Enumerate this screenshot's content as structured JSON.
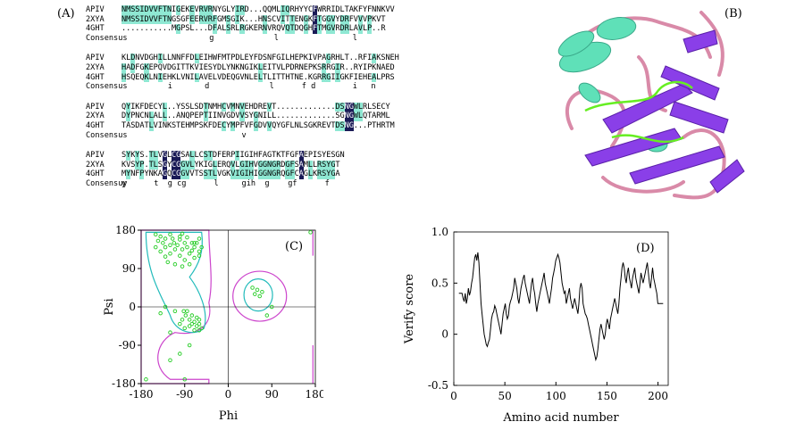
{
  "panels": {
    "a": "(A)",
    "b": "(B)",
    "c": "(C)",
    "d": "(D)"
  },
  "alignment": {
    "blocks": [
      {
        "rows": [
          {
            "name": "APIV",
            "seq": "NMSSIDVVFTNIGEKEVRVRNYGLYIRD...QQMLIQRHYYCFWRRIDLTAKFYFNNKVV"
          },
          {
            "name": "2XYA",
            "seq": "NMSSIDVVFTNGSGFEERVRFGMSGIK...HNSCVITTENGKFTGGVYDRFVVVPKVT"
          },
          {
            "name": "4GHT",
            "seq": "...........MGPSL...DFALSRLRGKERNVRQVQTDQGHFTMGVRDRLAVLP..R"
          }
        ],
        "consensus": "                   g             l                l          "
      },
      {
        "rows": [
          {
            "name": "APIV",
            "seq": "KLDNVDGHILLNNFFDLEIHWFMTPDLEYFDSNFGILHEPKIVPAGRHLT..RFIAKSNEH"
          },
          {
            "name": "2XYA",
            "seq": "HADFGKEPQVDGITTKVIESYDLYNKNGIKLEITVLPDRNEPKSRRGIR..RYIPKNAED"
          },
          {
            "name": "4GHT",
            "seq": "HSQEQKLNIEHKLVNILAVELVDEQGVNLELTLITTHTNE.KGRRGIIGKFIEHEALPRS"
          }
        ],
        "consensus": "          i       d             l      f d        i   n      "
      },
      {
        "rows": [
          {
            "name": "APIV",
            "seq": "QYIKFDECYL..YSSLSDTNMHCVMNVEHDREVT.............DSNGWLRLSECY"
          },
          {
            "name": "2XYA",
            "seq": "DYPNCNLALL..ANQPEPTIINVGDVVSYGNILL.............SGNGWLQTARML"
          },
          {
            "name": "4GHT",
            "seq": "TASDATLVINKSTEHMPSKFDECYMPFVFGDVVQYGFLNLSGKREVTDSNG...PTHRTM"
          }
        ],
        "consensus": "                          v                                  "
      },
      {
        "rows": [
          {
            "name": "APIV",
            "seq": "SYKYS.TLVGLCGSALLCSTDFERPIIGIHFAGTKTFGFAEPISYESGN"
          },
          {
            "name": "2XYA",
            "seq": "KVSYP.TLSGYCGGVLYKIGLERQVLGIHVGGNGRDGFSAMLLRSYGT"
          },
          {
            "name": "4GHT",
            "seq": "MYNFPYNKAGQCGGVVTSSTLVGKVIGIHIGGNGRQGFCAGLKRSYGA"
          }
        ],
        "consensus": "y      t  g cg      l     gih  g    gf      f     ",
        "consensus_label": "Consensuy"
      }
    ],
    "consensus_label": "Consensus"
  },
  "ramachandran": {
    "xlabel": "Phi",
    "ylabel": "Psi",
    "xticks": [
      "-180",
      "-90",
      "0",
      "90",
      "180"
    ],
    "yticks": [
      "180",
      "90",
      "0",
      "-90",
      "-180"
    ],
    "points_color": "#22cc22",
    "contour_outer_color": "#cc44cc",
    "contour_inner_color": "#22bbbb",
    "points": [
      [
        -140,
        165
      ],
      [
        -130,
        160
      ],
      [
        -120,
        170
      ],
      [
        -112,
        150
      ],
      [
        -100,
        158
      ],
      [
        -95,
        172
      ],
      [
        -85,
        163
      ],
      [
        -75,
        150
      ],
      [
        -70,
        140
      ],
      [
        -60,
        130
      ],
      [
        -150,
        140
      ],
      [
        -140,
        130
      ],
      [
        -130,
        118
      ],
      [
        -120,
        125
      ],
      [
        -110,
        135
      ],
      [
        -100,
        120
      ],
      [
        -90,
        110
      ],
      [
        -80,
        125
      ],
      [
        -70,
        115
      ],
      [
        -60,
        120
      ],
      [
        -55,
        140
      ],
      [
        -65,
        150
      ],
      [
        -135,
        150
      ],
      [
        -120,
        145
      ],
      [
        -105,
        145
      ],
      [
        -95,
        135
      ],
      [
        -85,
        140
      ],
      [
        -75,
        132
      ],
      [
        -150,
        170
      ],
      [
        -145,
        155
      ],
      [
        -125,
        105
      ],
      [
        -110,
        100
      ],
      [
        -95,
        95
      ],
      [
        -80,
        100
      ],
      [
        -70,
        150
      ],
      [
        -60,
        160
      ],
      [
        -115,
        160
      ],
      [
        -90,
        150
      ],
      [
        -130,
        140
      ],
      [
        -100,
        165
      ],
      [
        -92,
        -10
      ],
      [
        -88,
        -20
      ],
      [
        -80,
        -30
      ],
      [
        -75,
        -40
      ],
      [
        -70,
        -35
      ],
      [
        -65,
        -45
      ],
      [
        -60,
        -40
      ],
      [
        -55,
        -50
      ],
      [
        -70,
        -55
      ],
      [
        -80,
        -45
      ],
      [
        -95,
        -30
      ],
      [
        -100,
        -40
      ],
      [
        -85,
        -10
      ],
      [
        -75,
        -20
      ],
      [
        -65,
        -25
      ],
      [
        -60,
        -55
      ],
      [
        -90,
        -50
      ],
      [
        -120,
        -60
      ],
      [
        -110,
        -10
      ],
      [
        -60,
        -30
      ],
      [
        -130,
        0
      ],
      [
        -140,
        -15
      ],
      [
        -100,
        -110
      ],
      [
        -120,
        -125
      ],
      [
        -80,
        -90
      ],
      [
        60,
        40
      ],
      [
        55,
        30
      ],
      [
        65,
        25
      ],
      [
        70,
        35
      ],
      [
        50,
        45
      ],
      [
        80,
        -20
      ],
      [
        -170,
        -170
      ],
      [
        -90,
        -170
      ],
      [
        90,
        0
      ],
      [
        170,
        175
      ]
    ],
    "xlim": [
      -180,
      180
    ],
    "ylim": [
      -180,
      180
    ]
  },
  "verify": {
    "xlabel": "Amino acid number",
    "ylabel": "Verify score",
    "xticks": [
      "0",
      "50",
      "100",
      "150",
      "200"
    ],
    "yticks": [
      "1.0",
      "0.5",
      "0",
      "-0.5"
    ],
    "xlim": [
      0,
      210
    ],
    "ylim": [
      -0.5,
      1.0
    ],
    "y": [
      0.4,
      0.4,
      0.4,
      0.4,
      0.35,
      0.32,
      0.4,
      0.3,
      0.35,
      0.45,
      0.38,
      0.42,
      0.5,
      0.55,
      0.65,
      0.75,
      0.78,
      0.72,
      0.8,
      0.7,
      0.5,
      0.3,
      0.2,
      0.1,
      0.0,
      -0.05,
      -0.1,
      -0.12,
      -0.08,
      -0.05,
      0.05,
      0.15,
      0.2,
      0.22,
      0.28,
      0.25,
      0.2,
      0.15,
      0.1,
      0.05,
      0.0,
      0.1,
      0.2,
      0.25,
      0.3,
      0.2,
      0.15,
      0.18,
      0.28,
      0.32,
      0.35,
      0.4,
      0.45,
      0.55,
      0.5,
      0.45,
      0.35,
      0.3,
      0.38,
      0.45,
      0.5,
      0.55,
      0.58,
      0.5,
      0.45,
      0.4,
      0.35,
      0.3,
      0.4,
      0.5,
      0.55,
      0.45,
      0.4,
      0.3,
      0.22,
      0.3,
      0.35,
      0.4,
      0.45,
      0.5,
      0.55,
      0.6,
      0.5,
      0.45,
      0.4,
      0.35,
      0.3,
      0.38,
      0.45,
      0.55,
      0.6,
      0.65,
      0.72,
      0.75,
      0.78,
      0.75,
      0.7,
      0.6,
      0.5,
      0.45,
      0.4,
      0.42,
      0.3,
      0.35,
      0.4,
      0.45,
      0.35,
      0.3,
      0.25,
      0.3,
      0.35,
      0.3,
      0.25,
      0.2,
      0.3,
      0.45,
      0.5,
      0.45,
      0.3,
      0.25,
      0.2,
      0.18,
      0.15,
      0.1,
      0.05,
      0.0,
      -0.05,
      -0.1,
      -0.15,
      -0.2,
      -0.25,
      -0.22,
      -0.15,
      -0.05,
      0.05,
      0.1,
      0.05,
      0.0,
      -0.05,
      0.0,
      0.1,
      0.15,
      0.1,
      0.05,
      0.15,
      0.2,
      0.25,
      0.3,
      0.35,
      0.3,
      0.25,
      0.2,
      0.3,
      0.45,
      0.55,
      0.65,
      0.7,
      0.65,
      0.55,
      0.5,
      0.6,
      0.65,
      0.55,
      0.5,
      0.45,
      0.55,
      0.6,
      0.65,
      0.55,
      0.5,
      0.45,
      0.4,
      0.5,
      0.6,
      0.55,
      0.5,
      0.55,
      0.6,
      0.65,
      0.7,
      0.6,
      0.5,
      0.45,
      0.55,
      0.65,
      0.55,
      0.5,
      0.45,
      0.4,
      0.3,
      0.3,
      0.3,
      0.3,
      0.3,
      0.3
    ]
  }
}
